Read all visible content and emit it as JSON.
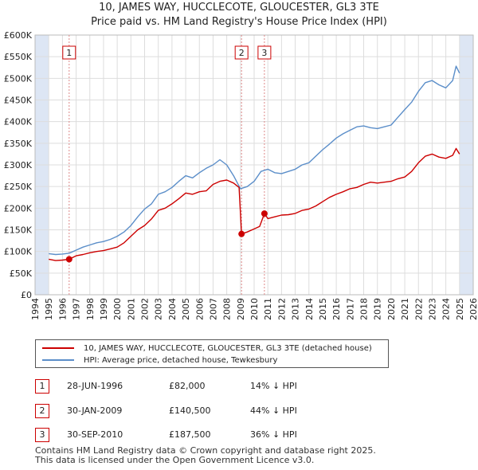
{
  "title_line1": "10, JAMES WAY, HUCCLECOTE, GLOUCESTER, GL3 3TE",
  "title_line2": "Price paid vs. HM Land Registry's House Price Index (HPI)",
  "colors": {
    "property": "#cc0000",
    "hpi": "#5b8ec9",
    "marker_border": "#cc0000",
    "vline": "#dd8888",
    "grid": "#dddddd",
    "shade": "#dde6f4"
  },
  "legend": {
    "property_label": "10, JAMES WAY, HUCCLECOTE, GLOUCESTER, GL3 3TE (detached house)",
    "hpi_label": "HPI: Average price, detached house, Tewkesbury"
  },
  "transactions": [
    {
      "id": "1",
      "date": "28-JUN-1996",
      "price": "£82,000",
      "hpi_delta": "14% ↓ HPI"
    },
    {
      "id": "2",
      "date": "30-JAN-2009",
      "price": "£140,500",
      "hpi_delta": "44% ↓ HPI"
    },
    {
      "id": "3",
      "date": "30-SEP-2010",
      "price": "£187,500",
      "hpi_delta": "36% ↓ HPI"
    }
  ],
  "footer_line1": "Contains HM Land Registry data © Crown copyright and database right 2025.",
  "footer_line2": "This data is licensed under the Open Government Licence v3.0.",
  "chart_data": {
    "type": "line",
    "title": "10, JAMES WAY, HUCCLECOTE, GLOUCESTER, GL3 3TE",
    "subtitle": "Price paid vs. HM Land Registry's House Price Index (HPI)",
    "xlim": [
      1994,
      2026
    ],
    "ylim": [
      0,
      600000
    ],
    "x_ticks": [
      "1994",
      "1995",
      "1996",
      "1997",
      "1998",
      "1999",
      "2000",
      "2001",
      "2002",
      "2003",
      "2004",
      "2005",
      "2006",
      "2007",
      "2008",
      "2009",
      "2010",
      "2011",
      "2012",
      "2013",
      "2014",
      "2015",
      "2016",
      "2017",
      "2018",
      "2019",
      "2020",
      "2021",
      "2022",
      "2023",
      "2024",
      "2025",
      "2026"
    ],
    "y_ticks": [
      {
        "v": 0,
        "label": "£0"
      },
      {
        "v": 50000,
        "label": "£50K"
      },
      {
        "v": 100000,
        "label": "£100K"
      },
      {
        "v": 150000,
        "label": "£150K"
      },
      {
        "v": 200000,
        "label": "£200K"
      },
      {
        "v": 250000,
        "label": "£250K"
      },
      {
        "v": 300000,
        "label": "£300K"
      },
      {
        "v": 350000,
        "label": "£350K"
      },
      {
        "v": 400000,
        "label": "£400K"
      },
      {
        "v": 450000,
        "label": "£450K"
      },
      {
        "v": 500000,
        "label": "£500K"
      },
      {
        "v": 550000,
        "label": "£550K"
      },
      {
        "v": 600000,
        "label": "£600K"
      }
    ],
    "grid": true,
    "shaded_ranges": [
      [
        1994,
        1995
      ],
      [
        2025,
        2026
      ]
    ],
    "markers": [
      {
        "label": "1",
        "x": 1996.49,
        "y": 82000
      },
      {
        "label": "2",
        "x": 2009.08,
        "y": 140500
      },
      {
        "label": "3",
        "x": 2010.75,
        "y": 187500
      }
    ],
    "series": [
      {
        "name": "10, JAMES WAY, HUCCLECOTE, GLOUCESTER, GL3 3TE (detached house)",
        "x": [
          1995.0,
          1995.5,
          1996.0,
          1996.49,
          1997.0,
          1997.5,
          1998.0,
          1998.5,
          1999.0,
          1999.5,
          2000.0,
          2000.5,
          2001.0,
          2001.5,
          2002.0,
          2002.5,
          2003.0,
          2003.5,
          2004.0,
          2004.5,
          2005.0,
          2005.5,
          2006.0,
          2006.5,
          2007.0,
          2007.5,
          2008.0,
          2008.5,
          2008.9,
          2009.08,
          2009.5,
          2010.0,
          2010.4,
          2010.75,
          2011.0,
          2011.5,
          2012.0,
          2012.5,
          2013.0,
          2013.5,
          2014.0,
          2014.5,
          2015.0,
          2015.5,
          2016.0,
          2016.5,
          2017.0,
          2017.5,
          2018.0,
          2018.5,
          2019.0,
          2019.5,
          2020.0,
          2020.5,
          2021.0,
          2021.5,
          2022.0,
          2022.5,
          2023.0,
          2023.5,
          2024.0,
          2024.5,
          2024.75,
          2025.0
        ],
        "values": [
          82000,
          79000,
          80000,
          82000,
          90000,
          93000,
          97000,
          100000,
          102000,
          106000,
          110000,
          120000,
          135000,
          150000,
          160000,
          175000,
          195000,
          200000,
          210000,
          222000,
          235000,
          232000,
          238000,
          240000,
          255000,
          262000,
          265000,
          258000,
          248000,
          140500,
          145000,
          152000,
          158000,
          187500,
          176000,
          180000,
          184000,
          185000,
          188000,
          195000,
          198000,
          205000,
          215000,
          225000,
          232000,
          238000,
          245000,
          248000,
          255000,
          260000,
          258000,
          260000,
          262000,
          268000,
          272000,
          285000,
          305000,
          320000,
          325000,
          318000,
          315000,
          322000,
          338000,
          325000
        ]
      },
      {
        "name": "HPI: Average price, detached house, Tewkesbury",
        "x": [
          1995.0,
          1995.5,
          1996.0,
          1996.5,
          1997.0,
          1997.5,
          1998.0,
          1998.5,
          1999.0,
          1999.5,
          2000.0,
          2000.5,
          2001.0,
          2001.5,
          2002.0,
          2002.5,
          2003.0,
          2003.5,
          2004.0,
          2004.5,
          2005.0,
          2005.5,
          2006.0,
          2006.5,
          2007.0,
          2007.5,
          2008.0,
          2008.5,
          2009.0,
          2009.5,
          2010.0,
          2010.5,
          2011.0,
          2011.5,
          2012.0,
          2012.5,
          2013.0,
          2013.5,
          2014.0,
          2014.5,
          2015.0,
          2015.5,
          2016.0,
          2016.5,
          2017.0,
          2017.5,
          2018.0,
          2018.5,
          2019.0,
          2019.5,
          2020.0,
          2020.5,
          2021.0,
          2021.5,
          2022.0,
          2022.5,
          2023.0,
          2023.5,
          2024.0,
          2024.5,
          2024.75,
          2025.0
        ],
        "values": [
          95000,
          93000,
          94000,
          96000,
          103000,
          110000,
          115000,
          120000,
          123000,
          128000,
          135000,
          145000,
          160000,
          180000,
          198000,
          210000,
          232000,
          238000,
          248000,
          262000,
          275000,
          270000,
          282000,
          292000,
          300000,
          312000,
          300000,
          275000,
          245000,
          250000,
          262000,
          285000,
          290000,
          282000,
          280000,
          285000,
          290000,
          300000,
          305000,
          320000,
          335000,
          348000,
          362000,
          372000,
          380000,
          388000,
          390000,
          386000,
          384000,
          388000,
          392000,
          410000,
          428000,
          445000,
          470000,
          490000,
          495000,
          485000,
          478000,
          495000,
          528000,
          512000
        ]
      }
    ]
  }
}
